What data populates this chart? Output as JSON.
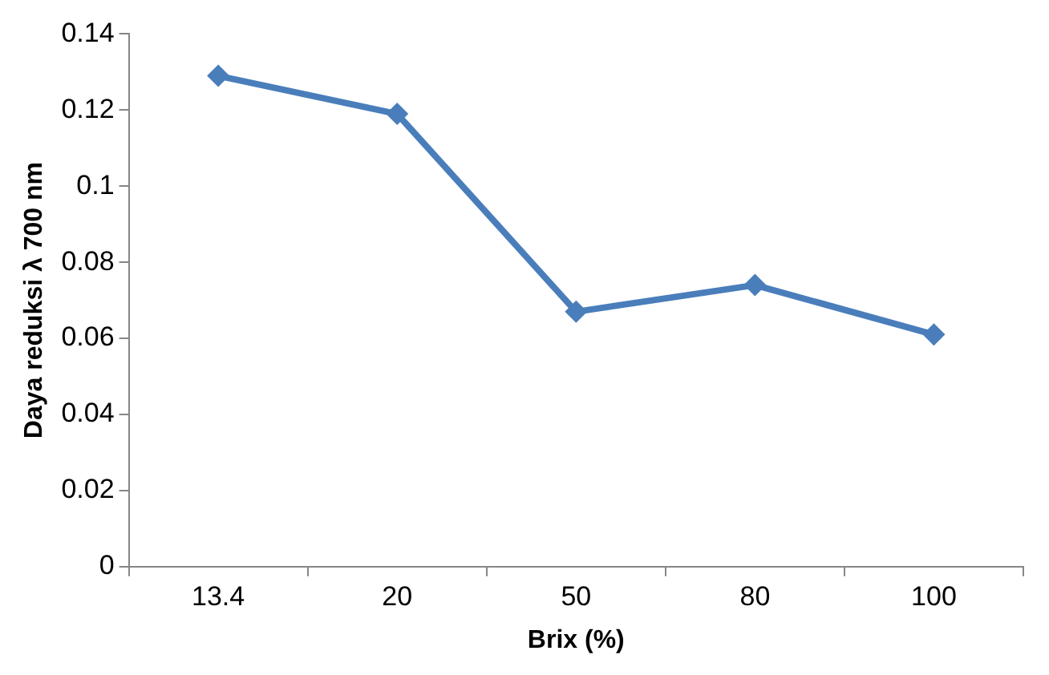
{
  "chart_data": {
    "type": "line",
    "xlabel": "Brix (%)",
    "ylabel": "Daya reduksi λ 700 nm",
    "categories": [
      "13.4",
      "20",
      "50",
      "80",
      "100"
    ],
    "series": [
      {
        "color": "#4a7ebb",
        "values": [
          0.129,
          0.119,
          0.067,
          0.074,
          0.061
        ]
      }
    ],
    "ylim": [
      0,
      0.14
    ],
    "yticks": [
      0,
      0.02,
      0.04,
      0.06,
      0.08,
      0.1,
      0.12,
      0.14
    ],
    "grid": false,
    "legend": false,
    "marker": "diamond",
    "line_style": "solid"
  }
}
